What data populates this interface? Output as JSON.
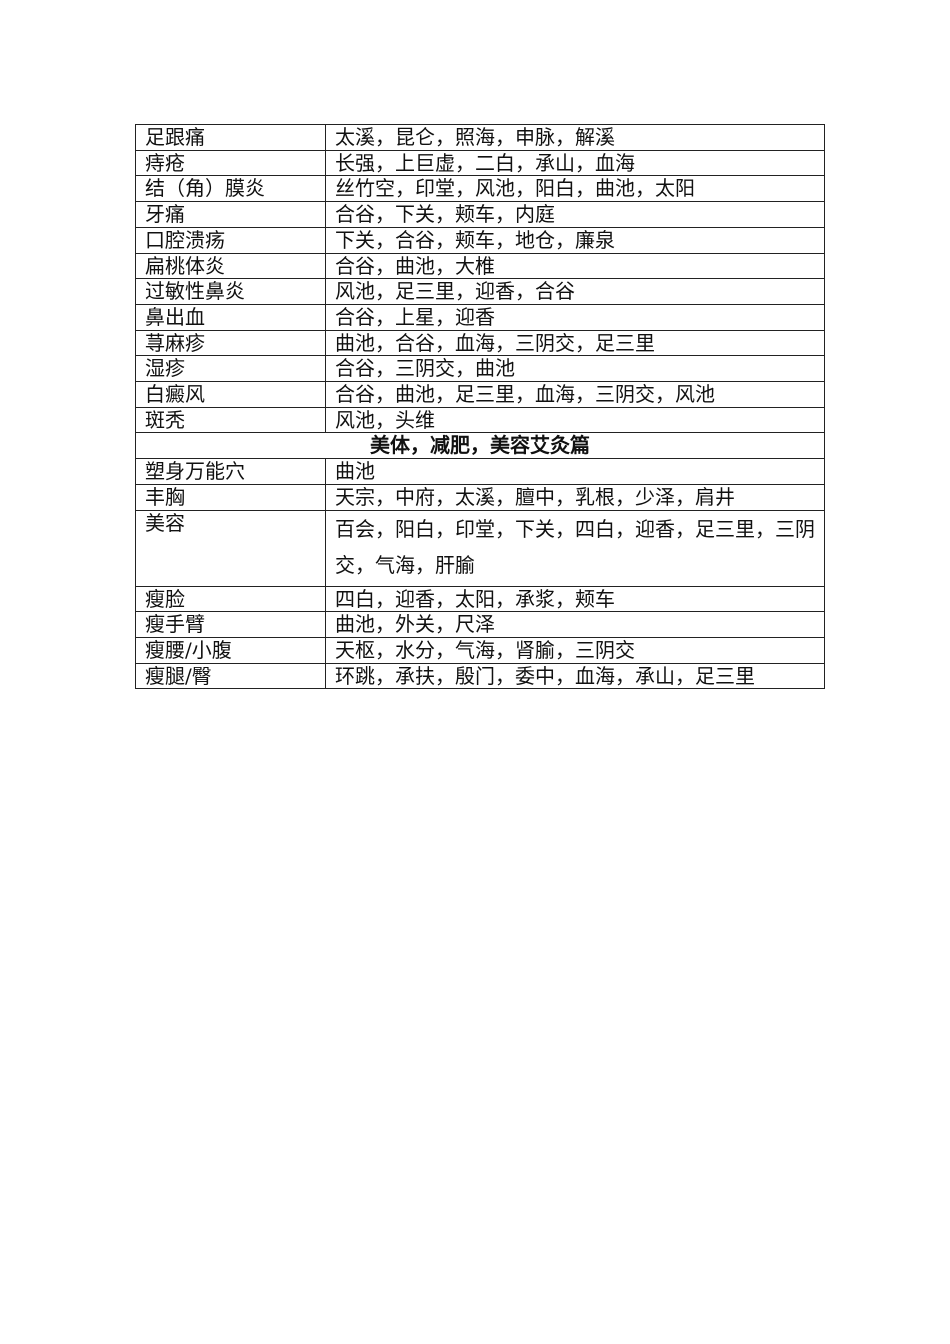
{
  "rows_a": [
    {
      "condition": "足跟痛",
      "points": "太溪，昆仑，照海，申脉，解溪"
    },
    {
      "condition": "痔疮",
      "points": "长强，上巨虚，二白，承山，血海"
    },
    {
      "condition": "结（角）膜炎",
      "points": "丝竹空，印堂，风池，阳白，曲池，太阳"
    },
    {
      "condition": "牙痛",
      "points": "合谷，下关，颊车，内庭"
    },
    {
      "condition": "口腔溃疡",
      "points": "下关，合谷，颊车，地仓，廉泉"
    },
    {
      "condition": "扁桃体炎",
      "points": "合谷，曲池，大椎"
    },
    {
      "condition": "过敏性鼻炎",
      "points": "风池，足三里，迎香，合谷"
    },
    {
      "condition": "鼻出血",
      "points": "合谷，上星，迎香"
    },
    {
      "condition": "荨麻疹",
      "points": "曲池，合谷，血海，三阴交，足三里"
    },
    {
      "condition": "湿疹",
      "points": "合谷，三阴交，曲池"
    },
    {
      "condition": "白癜风",
      "points": "合谷，曲池，足三里，血海，三阴交，风池"
    },
    {
      "condition": "斑秃",
      "points": "风池，头维"
    }
  ],
  "section_title": "美体，减肥，美容艾灸篇",
  "rows_b": [
    {
      "condition": "塑身万能穴",
      "points": "曲池"
    },
    {
      "condition": "丰胸",
      "points": "天宗，中府，太溪，膻中，乳根，少泽，肩井"
    },
    {
      "condition": "美容",
      "points": "百会，阳白，印堂，下关，四白，迎香，足三里，三阴交，气海，肝腧"
    },
    {
      "condition": "瘦脸",
      "points": "四白，迎香，太阳，承浆，颊车"
    },
    {
      "condition": "瘦手臂",
      "points": "曲池，外关，尺泽"
    },
    {
      "condition": "瘦腰/小腹",
      "points": "天枢，水分，气海，肾腧，三阴交"
    },
    {
      "condition": "瘦腿/臀",
      "points": "环跳，承扶，殷门，委中，血海，承山，足三里"
    }
  ]
}
